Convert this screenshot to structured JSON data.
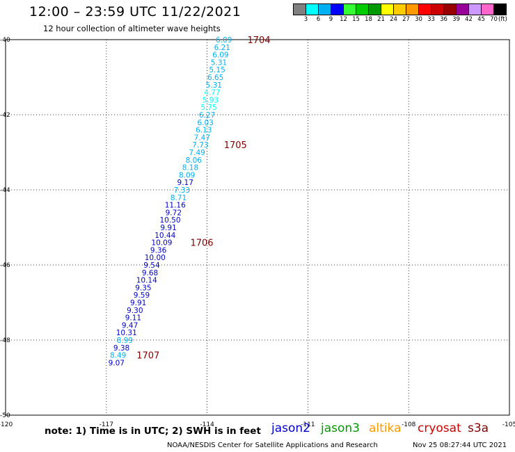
{
  "header": {
    "title": "12:00 – 23:59 UTC 11/22/2021",
    "subtitle": "12 hour collection of altimeter wave heights"
  },
  "color_scale": {
    "colors": [
      "#808080",
      "#00ffff",
      "#00b0f0",
      "#0000ff",
      "#33ff33",
      "#00cc00",
      "#009900",
      "#ffff00",
      "#ffcc00",
      "#ff9900",
      "#ff0000",
      "#cc0000",
      "#990000",
      "#990099",
      "#cc99ff",
      "#ff66cc",
      "#000000"
    ],
    "labels": [
      "3",
      "6",
      "9",
      "12",
      "15",
      "18",
      "21",
      "24",
      "27",
      "30",
      "33",
      "36",
      "39",
      "42",
      "45",
      "70"
    ],
    "unit": "(ft)"
  },
  "map": {
    "lon_range": [
      -120,
      -105
    ],
    "lat_range": [
      -50,
      -40
    ],
    "x_ticks": [
      "-120",
      "-117",
      "-114",
      "-111",
      "-108",
      "-105"
    ],
    "y_ticks": [
      "-40",
      "-42",
      "-44",
      "-46",
      "-48",
      "-50"
    ],
    "observations": [
      {
        "lat": -40.0,
        "lon": -113.5,
        "swh": "6.09",
        "color": "#00b0f0"
      },
      {
        "lat": -40.2,
        "lon": -113.55,
        "swh": "6.21",
        "color": "#00b0f0"
      },
      {
        "lat": -40.4,
        "lon": -113.6,
        "swh": "6.09",
        "color": "#00b0f0"
      },
      {
        "lat": -40.6,
        "lon": -113.65,
        "swh": "5.31",
        "color": "#00b0f0"
      },
      {
        "lat": -40.8,
        "lon": -113.7,
        "swh": "5.15",
        "color": "#00b0f0"
      },
      {
        "lat": -41.0,
        "lon": -113.75,
        "swh": "6.65",
        "color": "#00b0f0"
      },
      {
        "lat": -41.2,
        "lon": -113.8,
        "swh": "5.31",
        "color": "#00b0f0"
      },
      {
        "lat": -41.4,
        "lon": -113.85,
        "swh": "4.77",
        "color": "#00ffff"
      },
      {
        "lat": -41.6,
        "lon": -113.9,
        "swh": "5.93",
        "color": "#00ffff"
      },
      {
        "lat": -41.8,
        "lon": -113.95,
        "swh": "5.75",
        "color": "#00ffff"
      },
      {
        "lat": -42.0,
        "lon": -114.0,
        "swh": "6.27",
        "color": "#00b0f0"
      },
      {
        "lat": -42.2,
        "lon": -114.05,
        "swh": "6.03",
        "color": "#00b0f0"
      },
      {
        "lat": -42.4,
        "lon": -114.1,
        "swh": "6.13",
        "color": "#00b0f0"
      },
      {
        "lat": -42.6,
        "lon": -114.15,
        "swh": "7.47",
        "color": "#00b0f0"
      },
      {
        "lat": -42.8,
        "lon": -114.2,
        "swh": "7.73",
        "color": "#00b0f0"
      },
      {
        "lat": -43.0,
        "lon": -114.3,
        "swh": "7.49",
        "color": "#00b0f0"
      },
      {
        "lat": -43.2,
        "lon": -114.4,
        "swh": "8.06",
        "color": "#00b0f0"
      },
      {
        "lat": -43.4,
        "lon": -114.5,
        "swh": "8.18",
        "color": "#00b0f0"
      },
      {
        "lat": -43.6,
        "lon": -114.6,
        "swh": "8.09",
        "color": "#00b0f0"
      },
      {
        "lat": -43.8,
        "lon": -114.65,
        "swh": "9.17",
        "color": "#0000cc"
      },
      {
        "lat": -44.0,
        "lon": -114.75,
        "swh": "7.33",
        "color": "#00b0f0"
      },
      {
        "lat": -44.2,
        "lon": -114.85,
        "swh": "8.71",
        "color": "#00b0f0"
      },
      {
        "lat": -44.4,
        "lon": -114.95,
        "swh": "11.16",
        "color": "#0000cc"
      },
      {
        "lat": -44.6,
        "lon": -115.0,
        "swh": "9.72",
        "color": "#0000cc"
      },
      {
        "lat": -44.8,
        "lon": -115.1,
        "swh": "10.50",
        "color": "#0000cc"
      },
      {
        "lat": -45.0,
        "lon": -115.15,
        "swh": "9.91",
        "color": "#0000cc"
      },
      {
        "lat": -45.2,
        "lon": -115.25,
        "swh": "10.44",
        "color": "#0000cc"
      },
      {
        "lat": -45.4,
        "lon": -115.35,
        "swh": "10.09",
        "color": "#0000cc"
      },
      {
        "lat": -45.6,
        "lon": -115.45,
        "swh": "9.36",
        "color": "#0000cc"
      },
      {
        "lat": -45.8,
        "lon": -115.55,
        "swh": "10.00",
        "color": "#0000cc"
      },
      {
        "lat": -46.0,
        "lon": -115.65,
        "swh": "9.54",
        "color": "#0000cc"
      },
      {
        "lat": -46.2,
        "lon": -115.7,
        "swh": "9.68",
        "color": "#0000cc"
      },
      {
        "lat": -46.4,
        "lon": -115.8,
        "swh": "10.14",
        "color": "#0000cc"
      },
      {
        "lat": -46.6,
        "lon": -115.9,
        "swh": "9.35",
        "color": "#0000cc"
      },
      {
        "lat": -46.8,
        "lon": -115.95,
        "swh": "9.59",
        "color": "#0000cc"
      },
      {
        "lat": -47.0,
        "lon": -116.05,
        "swh": "9.91",
        "color": "#0000cc"
      },
      {
        "lat": -47.2,
        "lon": -116.15,
        "swh": "9.30",
        "color": "#0000cc"
      },
      {
        "lat": -47.4,
        "lon": -116.2,
        "swh": "9.11",
        "color": "#0000cc"
      },
      {
        "lat": -47.6,
        "lon": -116.3,
        "swh": "9.47",
        "color": "#0000cc"
      },
      {
        "lat": -47.8,
        "lon": -116.4,
        "swh": "10.31",
        "color": "#0000cc"
      },
      {
        "lat": -48.0,
        "lon": -116.45,
        "swh": "8.99",
        "color": "#00b0f0"
      },
      {
        "lat": -48.2,
        "lon": -116.55,
        "swh": "9.38",
        "color": "#0000cc"
      },
      {
        "lat": -48.4,
        "lon": -116.65,
        "swh": "8.49",
        "color": "#00b0f0"
      },
      {
        "lat": -48.6,
        "lon": -116.7,
        "swh": "9.07",
        "color": "#0000cc"
      }
    ],
    "time_labels": [
      {
        "lat": -40.0,
        "lon": -112.8,
        "text": "1704"
      },
      {
        "lat": -42.8,
        "lon": -113.5,
        "text": "1705"
      },
      {
        "lat": -45.4,
        "lon": -114.5,
        "text": "1706"
      },
      {
        "lat": -48.4,
        "lon": -116.1,
        "text": "1707"
      }
    ],
    "time_label_color": "#800000"
  },
  "footer": {
    "note": "note: 1) Time is in UTC; 2) SWH is in feet",
    "legend": [
      {
        "label": "jason2",
        "color": "#0000cc"
      },
      {
        "label": "jason3",
        "color": "#009900"
      },
      {
        "label": "altika",
        "color": "#ff9900"
      },
      {
        "label": "cryosat",
        "color": "#cc0000"
      },
      {
        "label": "s3a",
        "color": "#800000"
      }
    ],
    "credit": "NOAA/NESDIS Center for Satellite Applications and Research",
    "timestamp": "Nov 25 08:27:44 UTC 2021"
  }
}
